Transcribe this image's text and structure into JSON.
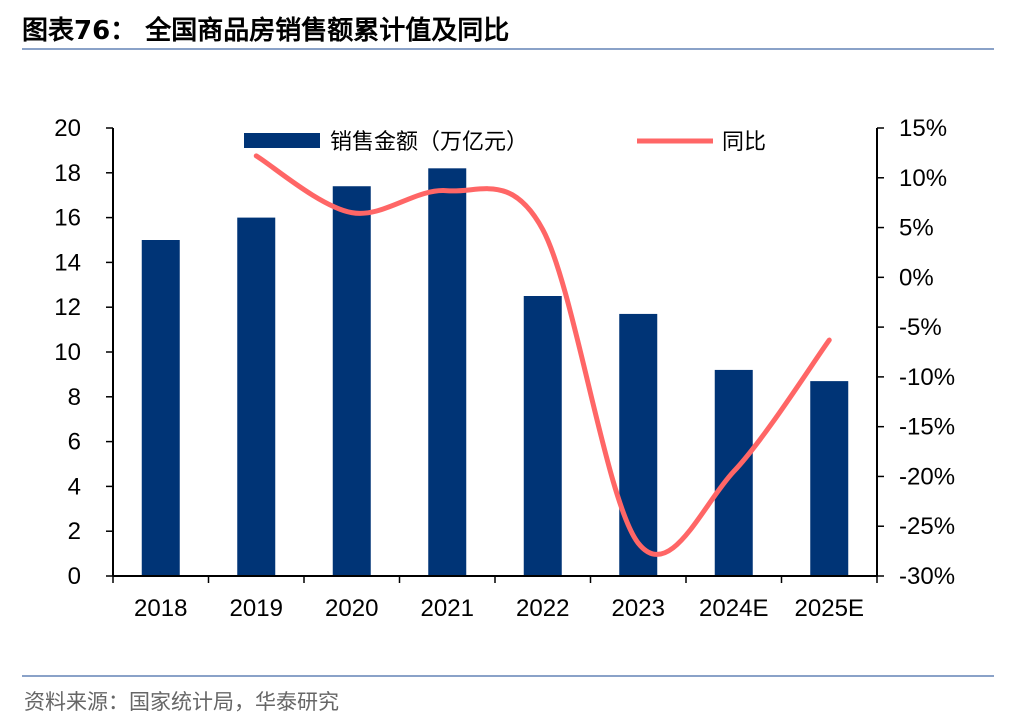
{
  "header": {
    "title": "图表76：  全国商品房销售额累计值及同比"
  },
  "footer": {
    "source": "资料来源：国家统计局，华泰研究"
  },
  "colors": {
    "bar": "#003476",
    "line": "#ff6666",
    "rule": "#8aa2c8"
  },
  "chart_data": {
    "type": "bar+line",
    "categories": [
      "2018",
      "2019",
      "2020",
      "2021",
      "2022",
      "2023",
      "2024E",
      "2025E"
    ],
    "series": [
      {
        "name": "销售金额（万亿元）",
        "type": "bar",
        "axis": "left",
        "values": [
          15.0,
          16.0,
          17.4,
          18.2,
          12.5,
          11.7,
          9.2,
          8.7
        ]
      },
      {
        "name": "同比",
        "type": "line",
        "axis": "right",
        "smooth": true,
        "values": [
          null,
          12.2,
          6.5,
          8.7,
          4.8,
          -26.7,
          -19.5,
          -6.3
        ]
      }
    ],
    "left_axis": {
      "ylim": [
        0,
        20
      ],
      "ticks": [
        "0",
        "2",
        "4",
        "6",
        "8",
        "10",
        "12",
        "14",
        "16",
        "18",
        "20"
      ]
    },
    "right_axis": {
      "ylim": [
        -30,
        15
      ],
      "ticks": [
        "-30%",
        "-25%",
        "-20%",
        "-15%",
        "-10%",
        "-5%",
        "0%",
        "5%",
        "10%",
        "15%"
      ]
    },
    "legend": "top",
    "grid": false
  }
}
